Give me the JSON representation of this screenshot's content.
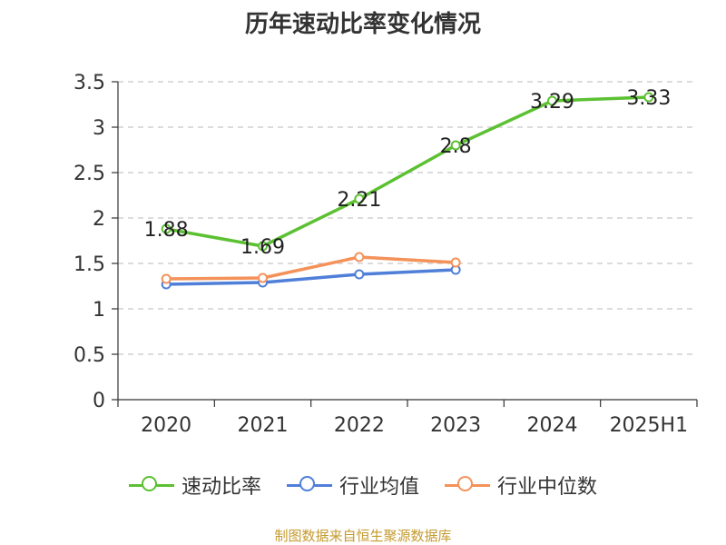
{
  "chart_data": {
    "type": "line",
    "title": "历年速动比率变化情况",
    "categories": [
      "2020",
      "2021",
      "2022",
      "2023",
      "2024",
      "2025H1"
    ],
    "yticks": [
      "0",
      "0.5",
      "1",
      "1.5",
      "2",
      "2.5",
      "3",
      "3.5"
    ],
    "ylim": [
      0,
      3.5
    ],
    "grid": true,
    "legend_position": "bottom",
    "series": [
      {
        "name": "速动比率",
        "color": "#5cc132",
        "values": [
          1.88,
          1.69,
          2.21,
          2.8,
          3.29,
          3.33
        ],
        "labels": [
          "1.88",
          "1.69",
          "2.21",
          "2.8",
          "3.29",
          "3.33"
        ]
      },
      {
        "name": "行业均值",
        "color": "#4f7fd8",
        "values": [
          1.27,
          1.29,
          1.38,
          1.43,
          null,
          null
        ]
      },
      {
        "name": "行业中位数",
        "color": "#f4925a",
        "values": [
          1.33,
          1.34,
          1.57,
          1.51,
          null,
          null
        ]
      }
    ]
  },
  "source_text": "制图数据来自恒生聚源数据库"
}
